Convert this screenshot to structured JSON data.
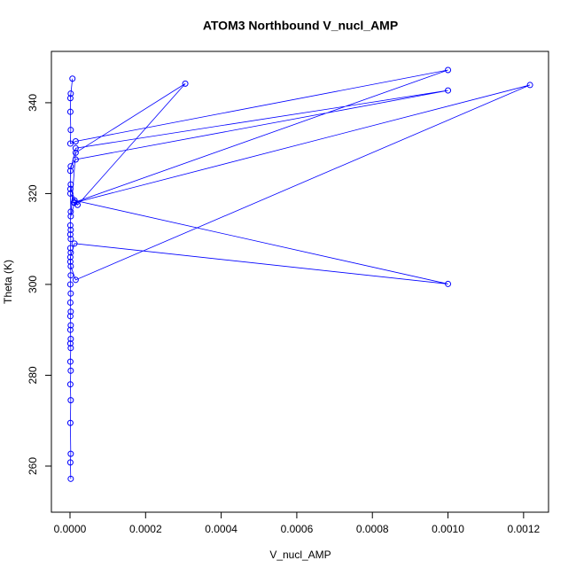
{
  "chart_data": {
    "type": "line",
    "title": "ATOM3 Northbound V_nucl_AMP",
    "xlabel": "V_nucl_AMP",
    "ylabel": "Theta (K)",
    "x": [
      6.5e-06,
      1e-06,
      2e-06,
      1e-06,
      2e-06,
      1e-06,
      1.5e-05,
      0.001,
      1e-05,
      2e-06,
      1e-06,
      1.5e-05,
      0.001,
      1.5e-05,
      2e-06,
      1e-06,
      1.2e-05,
      0.001,
      1.2e-05,
      1e-06,
      2e-06,
      1.5e-05,
      0.001217,
      1.2e-05,
      2e-06,
      1.5e-05,
      0.000305,
      2e-05,
      1e-06,
      2e-06,
      1e-06,
      2e-06,
      1e-06,
      2e-06,
      1e-06,
      2e-06,
      1e-06,
      2e-06,
      1e-06,
      2e-06,
      1e-06,
      2e-06,
      1e-06,
      2e-06,
      1e-06,
      2e-06,
      1e-06,
      2e-06,
      1e-06,
      2e-06,
      1e-06,
      2e-06,
      1e-06,
      2e-06,
      1e-06,
      2e-06
    ],
    "series": [
      {
        "name": "Theta (K)",
        "color": "#0000ff",
        "values": [
          345.3,
          341,
          342,
          338,
          334,
          331,
          331.5,
          347.2,
          318,
          322,
          325,
          330,
          342.7,
          327.5,
          326,
          320,
          318.5,
          300.1,
          309,
          306,
          304,
          301,
          343.9,
          318,
          315,
          329,
          344.2,
          317.5,
          321,
          316,
          313,
          312,
          311,
          310,
          308,
          307,
          305,
          302,
          300,
          298,
          296,
          294,
          293,
          291,
          290,
          288,
          287,
          286,
          283,
          281,
          278,
          274.5,
          269.5,
          262.7,
          260.8,
          257.2
        ]
      }
    ],
    "xlim": [
      -4.92e-05,
      0.001266
    ],
    "ylim": [
      249.85,
      351.3
    ],
    "xticks": [
      {
        "value": 0,
        "label": "0.0000"
      },
      {
        "value": 0.0002,
        "label": "0.0002"
      },
      {
        "value": 0.0004,
        "label": "0.0004"
      },
      {
        "value": 0.0006,
        "label": "0.0006"
      },
      {
        "value": 0.0008,
        "label": "0.0008"
      },
      {
        "value": 0.001,
        "label": "0.0010"
      },
      {
        "value": 0.0012,
        "label": "0.0012"
      }
    ],
    "yticks": [
      260,
      280,
      300,
      320,
      340
    ]
  }
}
